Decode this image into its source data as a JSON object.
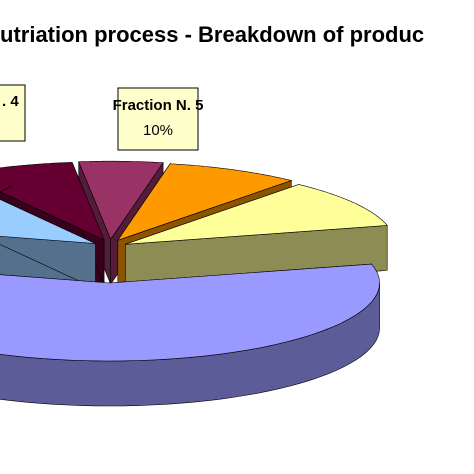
{
  "chart_data": {
    "type": "pie",
    "title": "utriation process - Breakdown of produc",
    "categories": [
      "Fraction N. 5",
      null,
      null,
      null,
      null,
      ". 4"
    ],
    "values": [
      10,
      58,
      12,
      7,
      5,
      8
    ],
    "value_labels": [
      "10%",
      null,
      null,
      null,
      null,
      null
    ],
    "colors": [
      "#ffff99",
      "#9999ff",
      "#99ccff",
      "#660033",
      "#993366",
      "#ff9900"
    ]
  }
}
